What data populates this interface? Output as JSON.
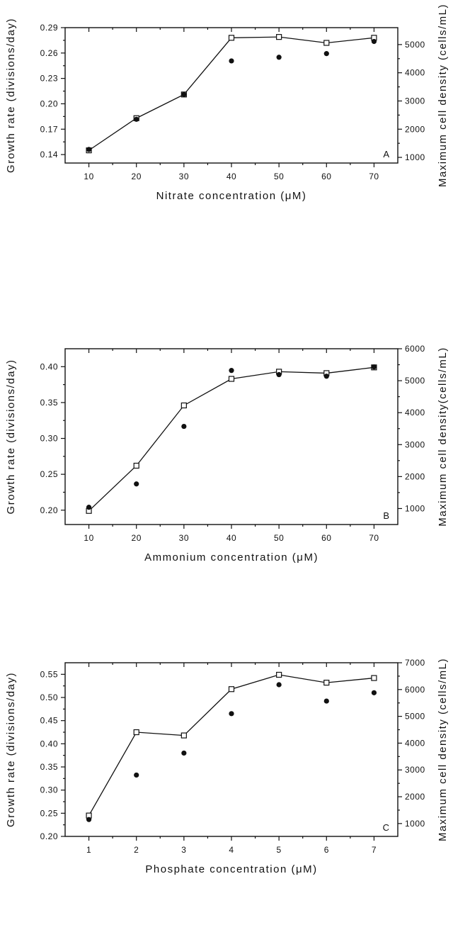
{
  "chart_data": [
    {
      "type": "line",
      "panel_label": "A",
      "xlabel": "Nitrate concentration (μM)",
      "ylabel": "Growth rate (divisions/day)",
      "ylabel_right": "Maximum cell density (cells/mL)",
      "x_ticks": [
        10,
        20,
        30,
        40,
        50,
        60,
        70
      ],
      "xlim": [
        5,
        75
      ],
      "y_ticks": [
        "0.14",
        "0.17",
        "0.20",
        "0.23",
        "0.26",
        "0.29"
      ],
      "ylim": [
        0.13,
        0.29
      ],
      "y2_ticks": [
        "1000",
        "2000",
        "3000",
        "4000",
        "5000"
      ],
      "y2lim": [
        800,
        5600
      ],
      "series": [
        {
          "marker": "open-square",
          "connected": true,
          "axis": "left",
          "x": [
            10,
            20,
            30,
            40,
            50,
            60,
            70
          ],
          "values": [
            0.145,
            0.183,
            0.211,
            0.278,
            0.279,
            0.272,
            0.278
          ]
        },
        {
          "marker": "filled-circle",
          "connected": false,
          "axis": "right",
          "x": [
            10,
            20,
            30,
            40,
            50,
            60,
            70
          ],
          "values": [
            1280,
            2350,
            3230,
            4420,
            4550,
            4680,
            5110
          ]
        }
      ]
    },
    {
      "type": "line",
      "panel_label": "B",
      "xlabel": "Ammonium concentration (μM)",
      "ylabel": "Growth rate (divisions/day)",
      "ylabel_right": "Maximum cell density(cells/mL)",
      "x_ticks": [
        10,
        20,
        30,
        40,
        50,
        60,
        70
      ],
      "xlim": [
        5,
        75
      ],
      "y_ticks": [
        "0.20",
        "0.25",
        "0.30",
        "0.35",
        "0.40"
      ],
      "ylim": [
        0.18,
        0.425
      ],
      "y2_ticks": [
        "1000",
        "2000",
        "3000",
        "4000",
        "5000",
        "6000"
      ],
      "y2lim": [
        500,
        6000
      ],
      "series": [
        {
          "marker": "open-square",
          "connected": true,
          "axis": "left",
          "x": [
            10,
            20,
            30,
            40,
            50,
            60,
            70
          ],
          "values": [
            0.199,
            0.262,
            0.346,
            0.383,
            0.393,
            0.391,
            0.399
          ]
        },
        {
          "marker": "filled-circle",
          "connected": false,
          "axis": "right",
          "x": [
            10,
            20,
            30,
            40,
            50,
            60,
            70
          ],
          "values": [
            1040,
            1770,
            3570,
            5320,
            5190,
            5140,
            5430
          ]
        }
      ]
    },
    {
      "type": "line",
      "panel_label": "C",
      "xlabel": "Phosphate concentration (μM)",
      "ylabel": "Growth rate (divisions/day)",
      "ylabel_right": "Maximum cell density (cells/mL)",
      "x_ticks": [
        1,
        2,
        3,
        4,
        5,
        6,
        7
      ],
      "xlim": [
        0.5,
        7.5
      ],
      "y_ticks": [
        "0.20",
        "0.25",
        "0.30",
        "0.35",
        "0.40",
        "0.45",
        "0.50",
        "0.55"
      ],
      "ylim": [
        0.2,
        0.575
      ],
      "y2_ticks": [
        "1000",
        "2000",
        "3000",
        "4000",
        "5000",
        "6000",
        "7000"
      ],
      "y2lim": [
        520,
        7000
      ],
      "series": [
        {
          "marker": "open-square",
          "connected": true,
          "axis": "left",
          "x": [
            1,
            2,
            3,
            4,
            5,
            6,
            7
          ],
          "values": [
            0.245,
            0.425,
            0.418,
            0.518,
            0.549,
            0.532,
            0.542
          ]
        },
        {
          "marker": "filled-circle",
          "connected": false,
          "axis": "right",
          "x": [
            1,
            2,
            3,
            4,
            5,
            6,
            7
          ],
          "values": [
            1150,
            2810,
            3630,
            5100,
            6180,
            5570,
            5880
          ]
        }
      ]
    }
  ]
}
